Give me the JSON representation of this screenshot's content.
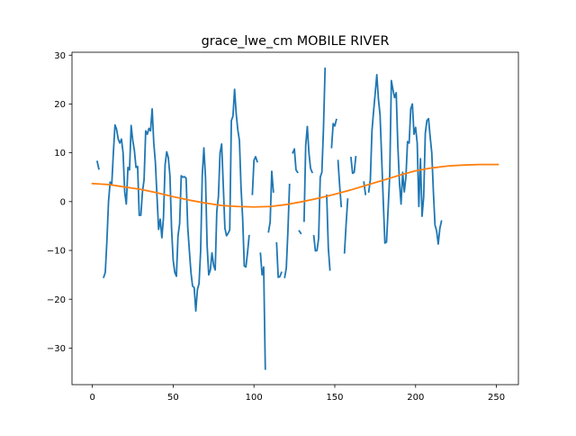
{
  "chart_data": {
    "type": "line",
    "title": "grace_lwe_cm MOBILE RIVER",
    "xlabel": "",
    "ylabel": "",
    "xlim": [
      -12.6,
      263.6
    ],
    "ylim": [
      -37.5,
      30.6
    ],
    "x_ticks": [
      0,
      50,
      100,
      150,
      200,
      250
    ],
    "y_ticks": [
      -30,
      -20,
      -10,
      0,
      10,
      20,
      30
    ],
    "grid": false,
    "legend": "none",
    "series": [
      {
        "color": "#1f77b4",
        "segments": [
          [
            [
              3,
              8.2
            ],
            [
              4,
              6.7
            ]
          ],
          [
            [
              7,
              -15.5
            ],
            [
              8,
              -14.5
            ],
            [
              9,
              -8
            ],
            [
              10,
              0
            ],
            [
              11,
              4
            ],
            [
              12,
              3.5
            ],
            [
              13,
              10
            ],
            [
              14,
              15.7
            ],
            [
              15,
              14.8
            ],
            [
              16,
              12.8
            ],
            [
              17,
              12
            ],
            [
              18,
              12.8
            ],
            [
              19,
              10
            ],
            [
              20,
              2
            ],
            [
              21,
              -0.5
            ],
            [
              22,
              7
            ],
            [
              23,
              6.5
            ],
            [
              24,
              15.6
            ],
            [
              25,
              12.5
            ],
            [
              26,
              10.5
            ],
            [
              27,
              7
            ],
            [
              28,
              7.2
            ],
            [
              29,
              -2.8
            ],
            [
              30,
              -2.8
            ],
            [
              31,
              2
            ],
            [
              32,
              4.5
            ],
            [
              33,
              14.5
            ],
            [
              34,
              13.8
            ],
            [
              35,
              15
            ],
            [
              36,
              14.5
            ],
            [
              37,
              19
            ],
            [
              38,
              12
            ],
            [
              39,
              8
            ],
            [
              40,
              1
            ],
            [
              41,
              -5.7
            ],
            [
              42,
              -3.6
            ],
            [
              43,
              -7.4
            ],
            [
              44,
              -3.3
            ],
            [
              45,
              7.5
            ],
            [
              46,
              10.2
            ],
            [
              47,
              9
            ],
            [
              48,
              5.3
            ],
            [
              49,
              -5.5
            ],
            [
              50,
              -12
            ],
            [
              51,
              -14.5
            ],
            [
              52,
              -15.3
            ],
            [
              53,
              -7
            ],
            [
              54,
              -4.5
            ],
            [
              55,
              5.3
            ],
            [
              56,
              5
            ],
            [
              57,
              5.1
            ],
            [
              58,
              4.8
            ],
            [
              59,
              -5.2
            ],
            [
              60,
              -10
            ],
            [
              61,
              -14.5
            ],
            [
              62,
              -17.3
            ],
            [
              63,
              -17.6
            ],
            [
              64,
              -22.4
            ],
            [
              65,
              -18
            ],
            [
              66,
              -16.8
            ],
            [
              67,
              -10
            ],
            [
              68,
              5.4
            ],
            [
              69,
              11
            ],
            [
              70,
              5
            ],
            [
              71,
              -9
            ],
            [
              72,
              -15
            ],
            [
              73,
              -14
            ],
            [
              74,
              -10.5
            ],
            [
              75,
              -13
            ],
            [
              76,
              -14
            ],
            [
              77,
              -2
            ],
            [
              78,
              1
            ],
            [
              79,
              10
            ],
            [
              80,
              11.8
            ],
            [
              81,
              3.3
            ],
            [
              82,
              -5.4
            ],
            [
              83,
              -7
            ],
            [
              84,
              -6.5
            ],
            [
              85,
              -5.8
            ],
            [
              86,
              16.6
            ],
            [
              87,
              17.5
            ],
            [
              88,
              23
            ],
            [
              89,
              18
            ],
            [
              90,
              14.7
            ],
            [
              91,
              12.5
            ],
            [
              92,
              2.8
            ],
            [
              93,
              -3.5
            ],
            [
              94,
              -13.2
            ],
            [
              95,
              -13.4
            ],
            [
              96,
              -10.5
            ],
            [
              97,
              -7
            ]
          ],
          [
            [
              99,
              1.5
            ],
            [
              100,
              8.5
            ],
            [
              101,
              9.2
            ],
            [
              102,
              8.2
            ]
          ],
          [
            [
              104,
              -10.6
            ],
            [
              105,
              -15
            ],
            [
              106,
              -13.4
            ],
            [
              107,
              -34.3
            ]
          ],
          [
            [
              109,
              -6.2
            ],
            [
              110,
              -4.2
            ],
            [
              111,
              6.2
            ],
            [
              112,
              2
            ]
          ],
          [
            [
              114,
              -8.5
            ],
            [
              115,
              -15.5
            ],
            [
              116,
              -15.4
            ],
            [
              117,
              -14.5
            ]
          ],
          [
            [
              119,
              -15.5
            ],
            [
              120,
              -13.6
            ],
            [
              121,
              -6
            ],
            [
              122,
              3.5
            ]
          ],
          [
            [
              124,
              10
            ],
            [
              125,
              10.8
            ],
            [
              126,
              6.5
            ],
            [
              127,
              6
            ]
          ],
          [
            [
              128,
              -6
            ],
            [
              129,
              -6.5
            ]
          ],
          [
            [
              131,
              -4
            ],
            [
              132,
              11.5
            ],
            [
              133,
              15.4
            ],
            [
              134,
              10
            ],
            [
              135,
              6.8
            ],
            [
              136,
              6
            ]
          ],
          [
            [
              137,
              -7
            ],
            [
              138,
              -10.1
            ],
            [
              139,
              -10
            ],
            [
              140,
              -7.5
            ],
            [
              141,
              5
            ],
            [
              142,
              6
            ],
            [
              143,
              15
            ],
            [
              144,
              27.3
            ]
          ],
          [
            [
              145,
              1.3
            ],
            [
              146,
              -9.5
            ],
            [
              147,
              -14
            ]
          ],
          [
            [
              148,
              11.1
            ],
            [
              149,
              16
            ],
            [
              150,
              15.5
            ],
            [
              151,
              16.8
            ]
          ],
          [
            [
              152,
              8.4
            ],
            [
              153,
              3.3
            ],
            [
              154,
              -1
            ]
          ],
          [
            [
              156,
              -10.5
            ],
            [
              157,
              -4.6
            ],
            [
              158,
              0.5
            ]
          ],
          [
            [
              160,
              9
            ],
            [
              161,
              5.8
            ],
            [
              162,
              6
            ],
            [
              163,
              9.2
            ]
          ],
          [
            [
              168,
              4
            ],
            [
              169,
              1.5
            ]
          ],
          [
            [
              171,
              2
            ],
            [
              172,
              4.5
            ],
            [
              173,
              14.5
            ],
            [
              174,
              18.5
            ],
            [
              175,
              22.2
            ],
            [
              176,
              26
            ],
            [
              177,
              21
            ],
            [
              178,
              17.8
            ],
            [
              179,
              9
            ],
            [
              180,
              0
            ],
            [
              181,
              -8.5
            ],
            [
              182,
              -8.3
            ],
            [
              183,
              -1.5
            ],
            [
              184,
              5.5
            ],
            [
              185,
              24.8
            ],
            [
              186,
              22.9
            ],
            [
              187,
              21.3
            ],
            [
              188,
              22.3
            ],
            [
              189,
              11.5
            ],
            [
              190,
              4
            ],
            [
              191,
              -0.5
            ],
            [
              192,
              6
            ],
            [
              193,
              2
            ],
            [
              194,
              5
            ],
            [
              195,
              12.3
            ],
            [
              196,
              12
            ],
            [
              197,
              19
            ],
            [
              198,
              20
            ],
            [
              199,
              13.8
            ],
            [
              200,
              15.2
            ],
            [
              201,
              12
            ],
            [
              202,
              -1
            ],
            [
              203,
              8.8
            ],
            [
              204,
              -3
            ],
            [
              205,
              1
            ],
            [
              206,
              14
            ],
            [
              207,
              16.6
            ],
            [
              208,
              17
            ],
            [
              209,
              13.3
            ],
            [
              210,
              10
            ],
            [
              211,
              2
            ],
            [
              212,
              -4.8
            ],
            [
              213,
              -6
            ],
            [
              214,
              -8.7
            ],
            [
              215,
              -5.5
            ],
            [
              216,
              -4
            ]
          ]
        ]
      },
      {
        "color": "#ff7f0e",
        "points": [
          [
            0,
            3.7
          ],
          [
            10,
            3.5
          ],
          [
            20,
            3.0
          ],
          [
            30,
            2.5
          ],
          [
            40,
            1.8
          ],
          [
            50,
            1.0
          ],
          [
            60,
            0.3
          ],
          [
            70,
            -0.3
          ],
          [
            80,
            -0.8
          ],
          [
            90,
            -1.0
          ],
          [
            100,
            -1.1
          ],
          [
            110,
            -1.0
          ],
          [
            120,
            -0.6
          ],
          [
            130,
            0.0
          ],
          [
            140,
            0.7
          ],
          [
            150,
            1.5
          ],
          [
            160,
            2.4
          ],
          [
            170,
            3.4
          ],
          [
            180,
            4.4
          ],
          [
            190,
            5.4
          ],
          [
            200,
            6.3
          ],
          [
            210,
            6.9
          ],
          [
            220,
            7.3
          ],
          [
            230,
            7.5
          ],
          [
            240,
            7.6
          ],
          [
            251,
            7.6
          ]
        ]
      }
    ]
  }
}
